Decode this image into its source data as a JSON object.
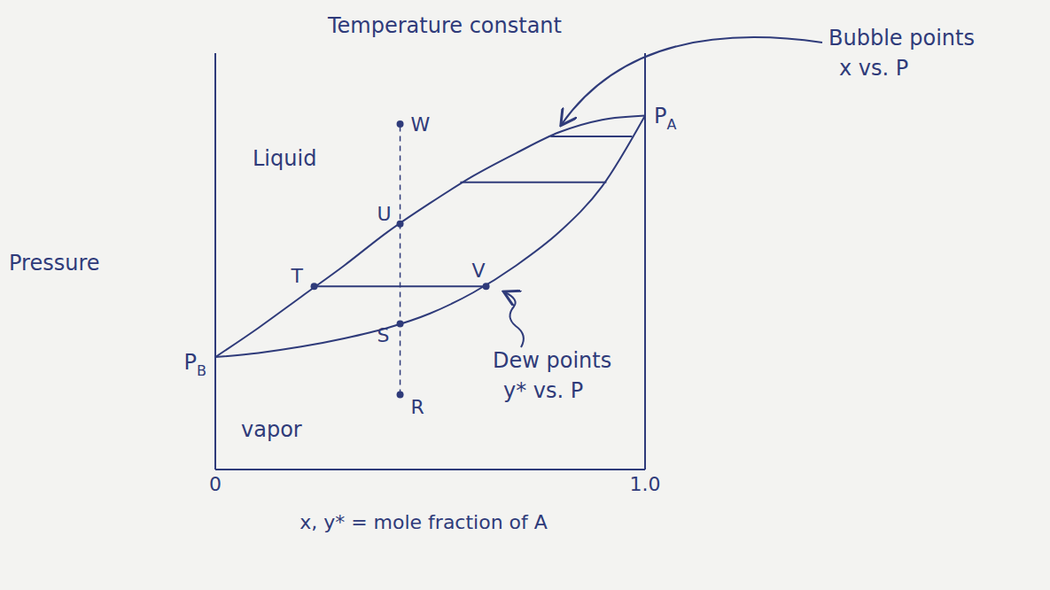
{
  "chart_data": {
    "type": "line",
    "title": "Temperature constant",
    "x_label": "x, y* = mole fraction of A",
    "y_label": "Pressure",
    "color": "#2f3b7a",
    "x": [
      0,
      0.1,
      0.2,
      0.3,
      0.4,
      0.5,
      0.6,
      0.7,
      0.8,
      0.9,
      1.0
    ],
    "series": [
      {
        "annotation": [
          "Bubble points",
          "x vs. P"
        ],
        "values": [
          27,
          34,
          41.5,
          49,
          57,
          64,
          70.5,
          76,
          81,
          84,
          85
        ]
      },
      {
        "annotation": [
          "Dew points",
          "y* vs. P"
        ],
        "values": [
          27,
          28,
          29.5,
          31.5,
          34,
          37.5,
          42.5,
          49,
          57,
          68,
          85
        ]
      }
    ],
    "xlim": [
      0,
      1
    ],
    "xticks": [
      0,
      {
        "value": 1,
        "label": "1.0"
      }
    ],
    "ylim": [
      0,
      100
    ],
    "yticks": [],
    "tick_labels": "x",
    "grid": false,
    "regions": [
      "Liquid",
      "vapor"
    ],
    "points": [
      {
        "label": "W",
        "x": 0.43,
        "y": 83
      },
      {
        "label": "U",
        "x": 0.43,
        "y": 59
      },
      {
        "label": "T",
        "x": 0.23,
        "y": 44
      },
      {
        "label": "S",
        "x": 0.43,
        "y": 35
      },
      {
        "label": "R",
        "x": 0.43,
        "y": 18
      },
      {
        "label": "V",
        "x": 0.63,
        "y": 44
      }
    ],
    "dashed_line": [
      "R",
      "W"
    ],
    "tie_lines": [
      {
        "x1": 0.23,
        "x2": 0.63,
        "y": 44
      },
      {
        "x1": 0.57,
        "x2": 0.91,
        "y": 69
      },
      {
        "x1": 0.78,
        "x2": 0.97,
        "y": 80
      }
    ],
    "end_labels": [
      {
        "text": "P",
        "sub": "A",
        "x": 1,
        "y": 85
      },
      {
        "text": "P",
        "sub": "B",
        "x": 0,
        "y": 27
      }
    ]
  }
}
